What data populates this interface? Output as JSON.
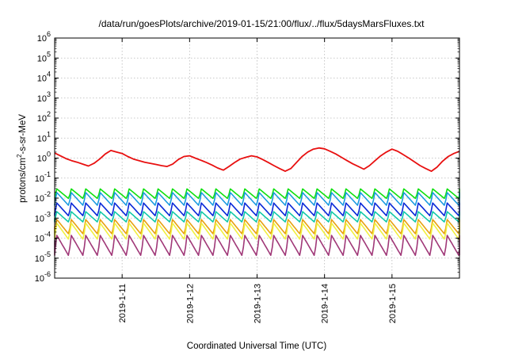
{
  "chart_data": {
    "type": "line",
    "title": "/data/run/goesPlots/archive/2019-01-15/21:00/flux/../flux/5daysMarsFluxes.txt",
    "xlabel": "Coordinated Universal Time (UTC)",
    "ylabel": {
      "prefix": "protons/cm",
      "sup": "2",
      "suffix": "-s-sr-MeV"
    },
    "y_scale": "log",
    "ylim": [
      1e-06,
      1000000.0
    ],
    "xlim": [
      "2019-01-10 00:00",
      "2019-01-16 00:00"
    ],
    "grid": true,
    "legend": "none",
    "y_ticks": [
      {
        "value": 1e-06,
        "base": "10",
        "exp": "-6"
      },
      {
        "value": 1e-05,
        "base": "10",
        "exp": "-5"
      },
      {
        "value": 0.0001,
        "base": "10",
        "exp": "-4"
      },
      {
        "value": 0.001,
        "base": "10",
        "exp": "-3"
      },
      {
        "value": 0.01,
        "base": "10",
        "exp": "-2"
      },
      {
        "value": 0.1,
        "base": "10",
        "exp": "-1"
      },
      {
        "value": 1.0,
        "base": "10",
        "exp": "0"
      },
      {
        "value": 10.0,
        "base": "10",
        "exp": "1"
      },
      {
        "value": 100.0,
        "base": "10",
        "exp": "2"
      },
      {
        "value": 1000.0,
        "base": "10",
        "exp": "3"
      },
      {
        "value": 10000.0,
        "base": "10",
        "exp": "4"
      },
      {
        "value": 100000.0,
        "base": "10",
        "exp": "5"
      },
      {
        "value": 1000000.0,
        "base": "10",
        "exp": "6"
      }
    ],
    "x_ticks": [
      {
        "date": "2019-01-11 00:00",
        "label": "2019-1-11"
      },
      {
        "date": "2019-01-12 00:00",
        "label": "2019-1-12"
      },
      {
        "date": "2019-01-13 00:00",
        "label": "2019-1-13"
      },
      {
        "date": "2019-01-14 00:00",
        "label": "2019-1-14"
      },
      {
        "date": "2019-01-15 00:00",
        "label": "2019-1-15"
      }
    ],
    "series": [
      {
        "color": "#e81010",
        "points": [
          [
            "2019-01-10 00:00",
            1.8
          ],
          [
            "2019-01-10 02:00",
            1.3
          ],
          [
            "2019-01-10 04:00",
            0.95
          ],
          [
            "2019-01-10 06:00",
            0.75
          ],
          [
            "2019-01-10 08:00",
            0.62
          ],
          [
            "2019-01-10 10:00",
            0.5
          ],
          [
            "2019-01-10 12:00",
            0.4
          ],
          [
            "2019-01-10 14:00",
            0.55
          ],
          [
            "2019-01-10 16:00",
            0.9
          ],
          [
            "2019-01-10 18:00",
            1.6
          ],
          [
            "2019-01-10 20:00",
            2.4
          ],
          [
            "2019-01-10 22:00",
            2.0
          ],
          [
            "2019-01-11 00:00",
            1.7
          ],
          [
            "2019-01-11 02:00",
            1.2
          ],
          [
            "2019-01-11 04:00",
            0.9
          ],
          [
            "2019-01-11 06:00",
            0.75
          ],
          [
            "2019-01-11 08:00",
            0.62
          ],
          [
            "2019-01-11 10:00",
            0.55
          ],
          [
            "2019-01-11 12:00",
            0.48
          ],
          [
            "2019-01-11 14:00",
            0.42
          ],
          [
            "2019-01-11 16:00",
            0.38
          ],
          [
            "2019-01-11 18:00",
            0.5
          ],
          [
            "2019-01-11 20:00",
            0.85
          ],
          [
            "2019-01-11 22:00",
            1.2
          ],
          [
            "2019-01-12 00:00",
            1.3
          ],
          [
            "2019-01-12 02:00",
            1.0
          ],
          [
            "2019-01-12 04:00",
            0.78
          ],
          [
            "2019-01-12 06:00",
            0.6
          ],
          [
            "2019-01-12 08:00",
            0.45
          ],
          [
            "2019-01-12 10:00",
            0.32
          ],
          [
            "2019-01-12 12:00",
            0.25
          ],
          [
            "2019-01-12 14:00",
            0.38
          ],
          [
            "2019-01-12 16:00",
            0.6
          ],
          [
            "2019-01-12 18:00",
            0.9
          ],
          [
            "2019-01-12 20:00",
            1.1
          ],
          [
            "2019-01-12 22:00",
            1.3
          ],
          [
            "2019-01-13 00:00",
            1.15
          ],
          [
            "2019-01-13 02:00",
            0.85
          ],
          [
            "2019-01-13 04:00",
            0.6
          ],
          [
            "2019-01-13 06:00",
            0.42
          ],
          [
            "2019-01-13 08:00",
            0.3
          ],
          [
            "2019-01-13 10:00",
            0.22
          ],
          [
            "2019-01-13 12:00",
            0.3
          ],
          [
            "2019-01-13 14:00",
            0.6
          ],
          [
            "2019-01-13 16:00",
            1.2
          ],
          [
            "2019-01-13 18:00",
            2.0
          ],
          [
            "2019-01-13 20:00",
            2.8
          ],
          [
            "2019-01-13 22:00",
            3.2
          ],
          [
            "2019-01-14 00:00",
            2.9
          ],
          [
            "2019-01-14 02:00",
            2.2
          ],
          [
            "2019-01-14 04:00",
            1.6
          ],
          [
            "2019-01-14 06:00",
            1.1
          ],
          [
            "2019-01-14 08:00",
            0.75
          ],
          [
            "2019-01-14 10:00",
            0.52
          ],
          [
            "2019-01-14 12:00",
            0.38
          ],
          [
            "2019-01-14 14:00",
            0.28
          ],
          [
            "2019-01-14 16:00",
            0.42
          ],
          [
            "2019-01-14 18:00",
            0.75
          ],
          [
            "2019-01-14 20:00",
            1.3
          ],
          [
            "2019-01-14 22:00",
            2.0
          ],
          [
            "2019-01-15 00:00",
            2.8
          ],
          [
            "2019-01-15 02:00",
            2.2
          ],
          [
            "2019-01-15 04:00",
            1.5
          ],
          [
            "2019-01-15 06:00",
            1.0
          ],
          [
            "2019-01-15 08:00",
            0.65
          ],
          [
            "2019-01-15 10:00",
            0.42
          ],
          [
            "2019-01-15 12:00",
            0.3
          ],
          [
            "2019-01-15 14:00",
            0.22
          ],
          [
            "2019-01-15 16:00",
            0.35
          ],
          [
            "2019-01-15 18:00",
            0.7
          ],
          [
            "2019-01-15 20:00",
            1.2
          ],
          [
            "2019-01-15 22:00",
            1.7
          ],
          [
            "2019-01-16 00:00",
            2.2
          ]
        ]
      },
      {
        "color": "#10e010",
        "high": 0.03,
        "low": 0.009,
        "phase": 0.05
      },
      {
        "color": "#1a9ae0",
        "high": 0.02,
        "low": 0.004,
        "phase": 0.15
      },
      {
        "color": "#0a2ad8",
        "high": 0.006,
        "low": 0.0012,
        "phase": 0.25
      },
      {
        "color": "#10c8a8",
        "high": 0.0022,
        "low": 0.0006,
        "phase": 0.35
      },
      {
        "color": "#e8a010",
        "high": 0.0009,
        "low": 0.00015,
        "phase": 0.45
      },
      {
        "color": "#f0f040",
        "high": 0.0006,
        "low": 8e-05,
        "phase": 0.55
      },
      {
        "color": "#a03878",
        "high": 0.00015,
        "low": 1.2e-05,
        "phase": 0.65
      }
    ]
  }
}
